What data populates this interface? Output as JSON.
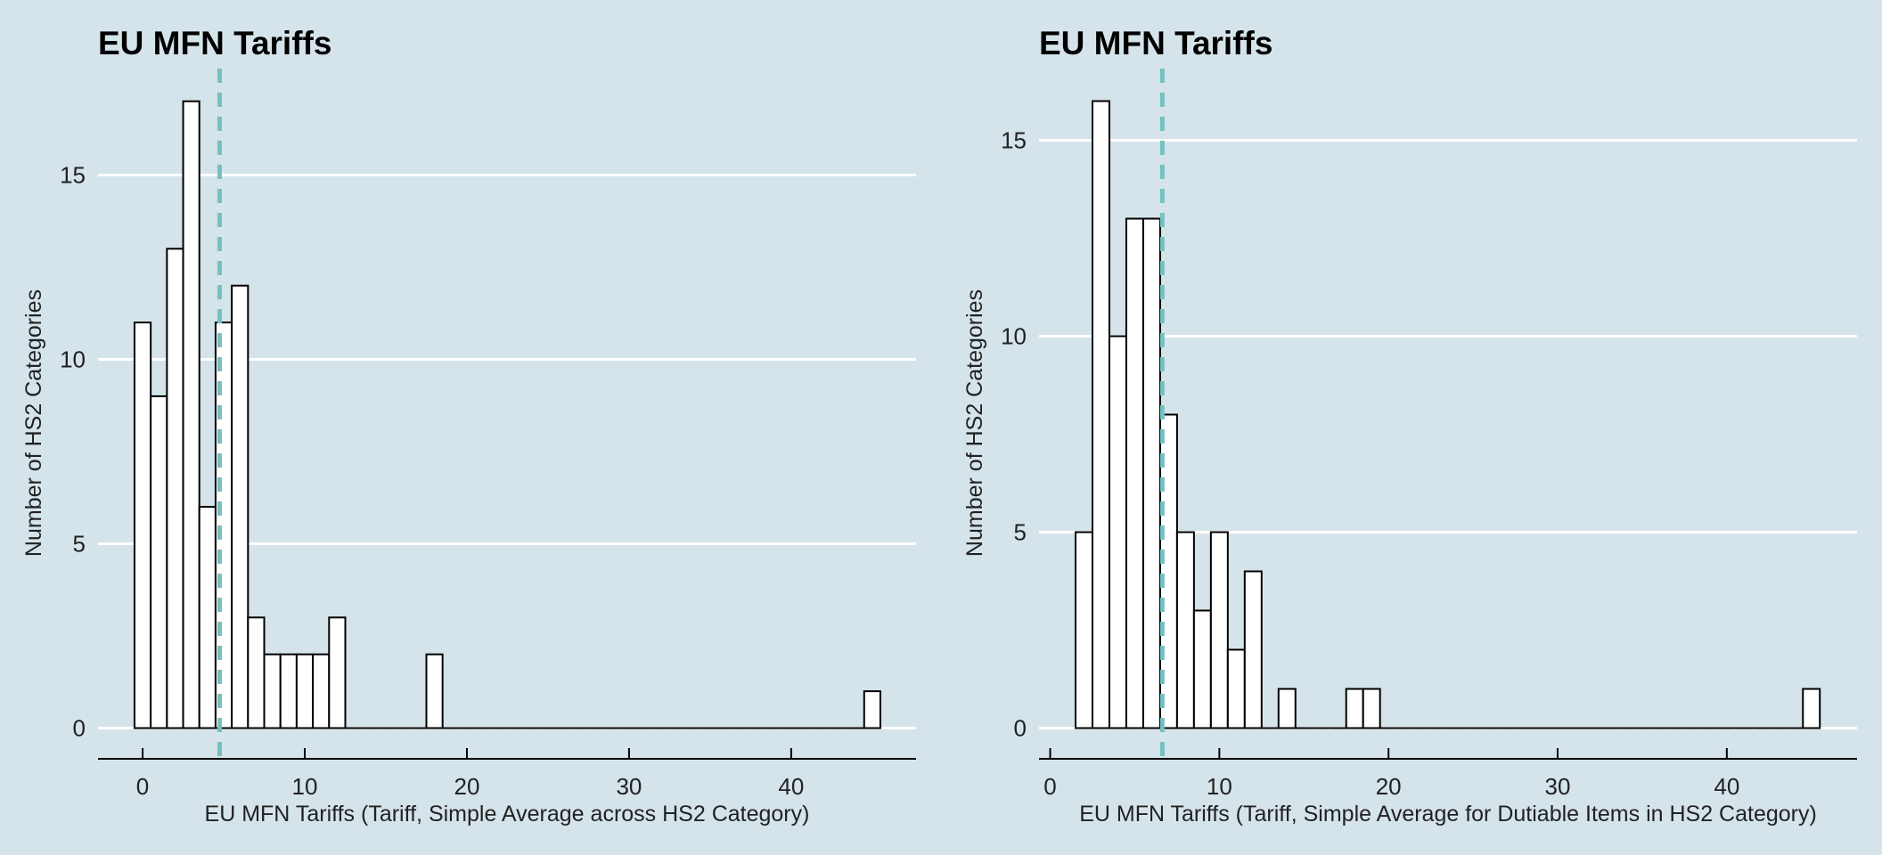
{
  "colors": {
    "background": "#d5e4eb",
    "bar_fill": "#ffffff",
    "bar_stroke": "#000000",
    "grid": "#ffffff",
    "mean_line": "#76c0c1"
  },
  "chart_data": [
    {
      "type": "bar",
      "title": "EU MFN Tariffs",
      "xlabel": "EU MFN Tariffs (Tariff, Simple Average across HS2 Category)",
      "ylabel": "Number of HS2 Categories",
      "xlim": [
        -2.75,
        47.7
      ],
      "ylim": [
        -0.85,
        17
      ],
      "xticks": [
        0,
        10,
        20,
        30,
        40
      ],
      "yticks": [
        0,
        5,
        10,
        15
      ],
      "grid": "horizontal",
      "bin_width": 1,
      "bin_centers": [
        0,
        1,
        2,
        3,
        4,
        5,
        6,
        7,
        8,
        9,
        10,
        11,
        12,
        13,
        14,
        15,
        16,
        17,
        18,
        19,
        20,
        21,
        22,
        23,
        24,
        25,
        26,
        27,
        28,
        29,
        30,
        31,
        32,
        33,
        34,
        35,
        36,
        37,
        38,
        39,
        40,
        41,
        42,
        43,
        44,
        45
      ],
      "values": [
        11,
        9,
        13,
        17,
        6,
        11,
        12,
        3,
        2,
        2,
        2,
        2,
        3,
        0,
        0,
        0,
        0,
        0,
        2,
        0,
        0,
        0,
        0,
        0,
        0,
        0,
        0,
        0,
        0,
        0,
        0,
        0,
        0,
        0,
        0,
        0,
        0,
        0,
        0,
        0,
        0,
        0,
        0,
        0,
        0,
        1
      ],
      "mean_line": 4.75
    },
    {
      "type": "bar",
      "title": "EU MFN Tariffs",
      "xlabel": "EU MFN Tariffs (Tariff, Simple Average for Dutiable Items in HS2 Category)",
      "ylabel": "Number of HS2 Categories",
      "xlim": [
        -0.66,
        47.7
      ],
      "ylim": [
        -0.8,
        16
      ],
      "xticks": [
        0,
        10,
        20,
        30,
        40
      ],
      "yticks": [
        0,
        5,
        10,
        15
      ],
      "grid": "horizontal",
      "bin_width": 1,
      "bin_centers": [
        2,
        3,
        4,
        5,
        6,
        7,
        8,
        9,
        10,
        11,
        12,
        13,
        14,
        15,
        16,
        17,
        18,
        19,
        20,
        21,
        22,
        23,
        24,
        25,
        26,
        27,
        28,
        29,
        30,
        31,
        32,
        33,
        34,
        35,
        36,
        37,
        38,
        39,
        40,
        41,
        42,
        43,
        44,
        45
      ],
      "values": [
        5,
        16,
        10,
        13,
        13,
        8,
        5,
        3,
        5,
        2,
        4,
        0,
        1,
        0,
        0,
        0,
        1,
        1,
        0,
        0,
        0,
        0,
        0,
        0,
        0,
        0,
        0,
        0,
        0,
        0,
        0,
        0,
        0,
        0,
        0,
        0,
        0,
        0,
        0,
        0,
        0,
        0,
        0,
        1
      ],
      "mean_line": 6.63
    }
  ]
}
